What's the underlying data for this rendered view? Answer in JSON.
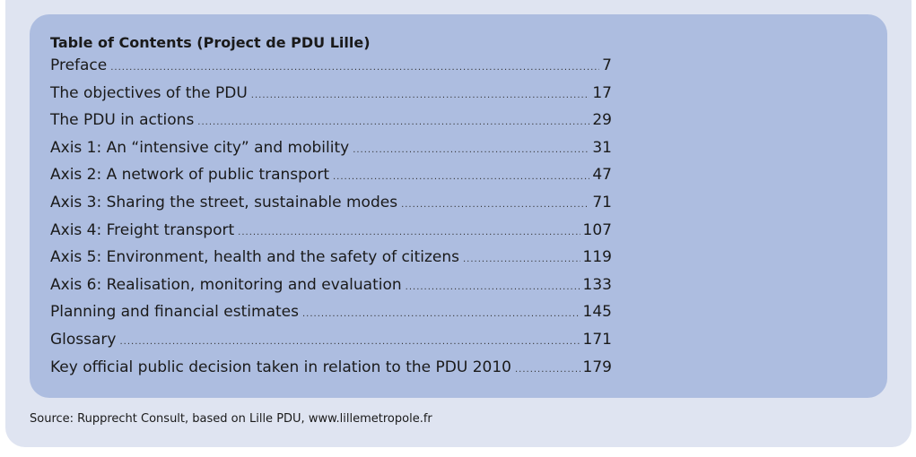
{
  "toc": {
    "title": "Table of Contents (Project de PDU Lille)",
    "entries": [
      {
        "label": "Preface",
        "page": "7"
      },
      {
        "label": "The objectives of the PDU",
        "page": "17"
      },
      {
        "label": "The PDU in actions",
        "page": "29"
      },
      {
        "label": "Axis 1: An “intensive city” and mobility",
        "page": "31"
      },
      {
        "label": "Axis 2: A network of public transport",
        "page": "47"
      },
      {
        "label": "Axis 3: Sharing the street, sustainable modes",
        "page": "71"
      },
      {
        "label": "Axis 4: Freight transport",
        "page": "107"
      },
      {
        "label": "Axis 5: Environment, health and the safety of citizens",
        "page": "119"
      },
      {
        "label": "Axis 6: Realisation, monitoring and evaluation",
        "page": "133"
      },
      {
        "label": "Planning and financial estimates",
        "page": "145"
      },
      {
        "label": "Glossary",
        "page": "171"
      },
      {
        "label": "Key official public decision taken in relation to the PDU 2010",
        "page": "179"
      }
    ]
  },
  "source": "Source: Rupprecht Consult, based on Lille PDU, www.lillemetropole.fr"
}
